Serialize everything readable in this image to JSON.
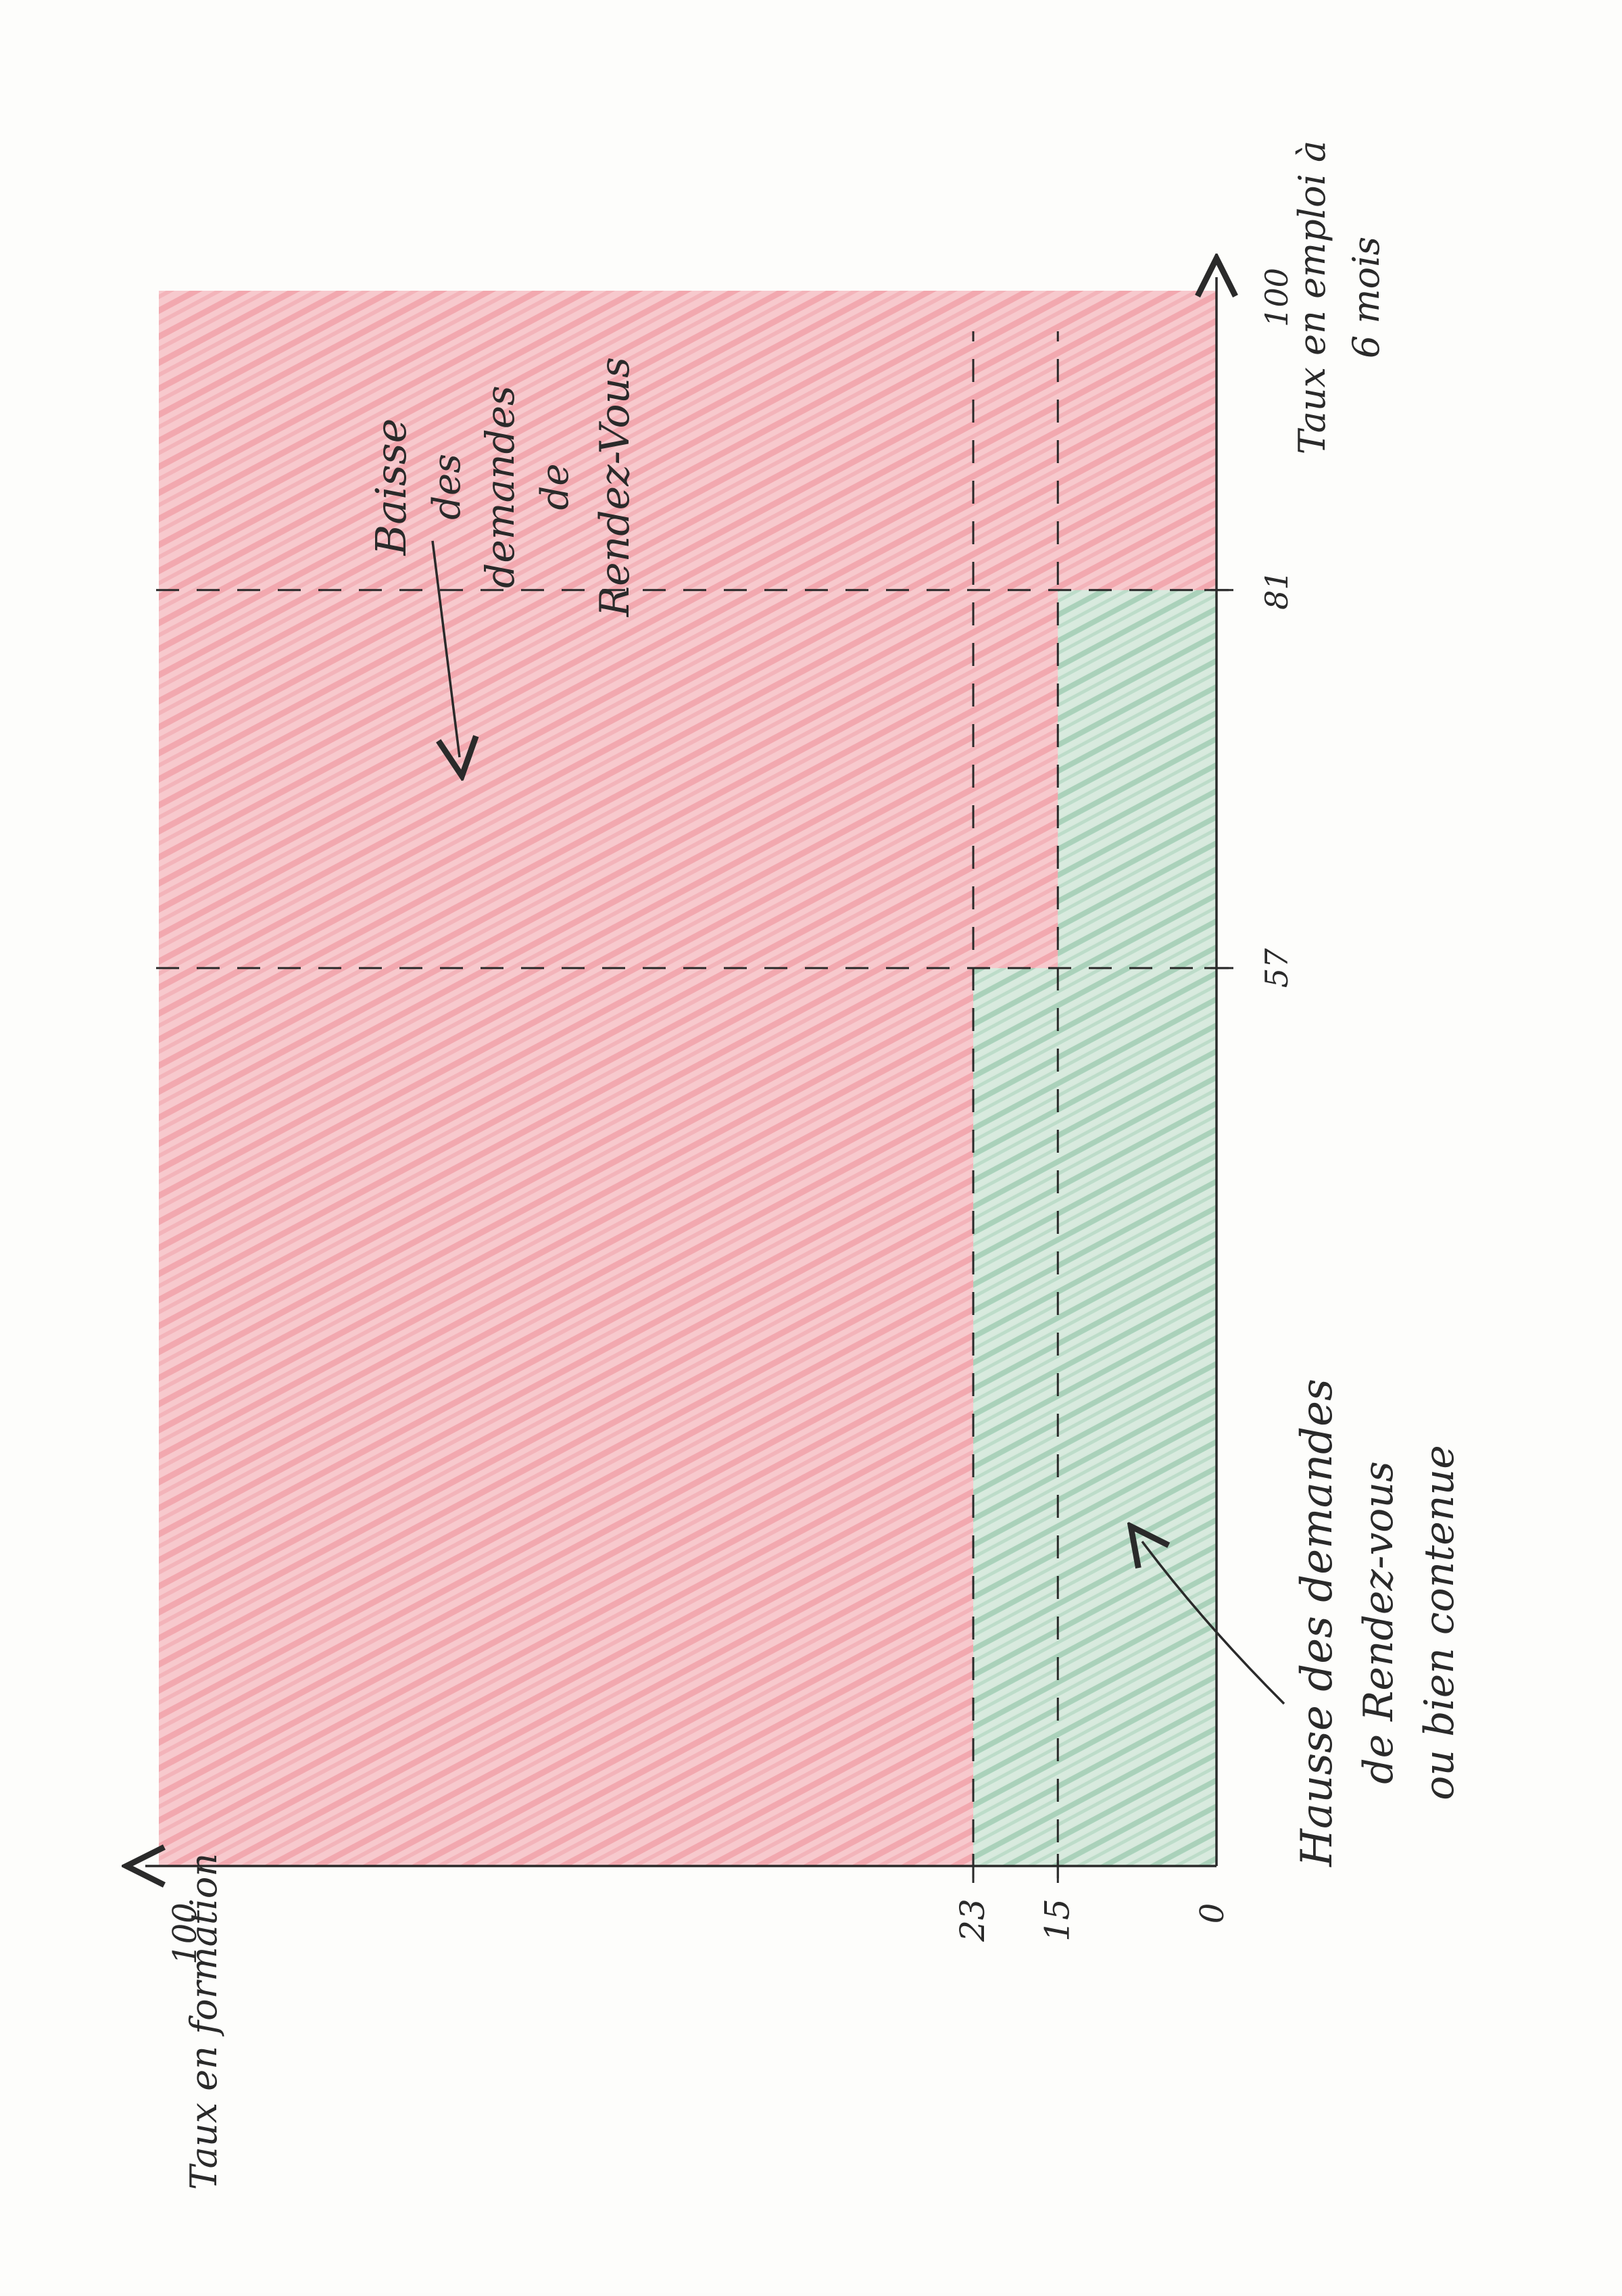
{
  "diagram": {
    "colors": {
      "red_zone": "#f08a94",
      "green_zone": "#8cc8a8",
      "ink": "#2a2a2a",
      "paper": "#fdfdfb"
    },
    "axes": {
      "horizontal_axis_label_line1": "Taux en formation",
      "horizontal_axis_max_label": "100",
      "vertical_axis_label_line1": "Taux en emploi à",
      "vertical_axis_label_line2": "6 mois",
      "vertical_axis_max_label": "100",
      "origin_label": "0",
      "range": [
        0,
        100
      ]
    },
    "thresholds": {
      "formation": [
        {
          "value": 15,
          "label": "15"
        },
        {
          "value": 23,
          "label": "23"
        }
      ],
      "emploi": [
        {
          "value": 57,
          "label": "57"
        },
        {
          "value": 81,
          "label": "81"
        }
      ]
    },
    "zones": [
      {
        "name": "hausse",
        "color": "green",
        "region": "formation ≤ 23 & emploi ≤ 57, or formation ≤ 15 & emploi ≤ 81"
      },
      {
        "name": "baisse",
        "color": "red",
        "region": "rest of the plane"
      }
    ],
    "annotations": {
      "baisse_line1": "Baisse",
      "baisse_line2": "des",
      "baisse_line3": "demandes",
      "baisse_line4": "de",
      "baisse_line5": "Rendez-Vous",
      "hausse_line1": "Hausse des demandes",
      "hausse_line2": "de Rendez-vous",
      "hausse_line3": "ou bien contenue"
    }
  }
}
